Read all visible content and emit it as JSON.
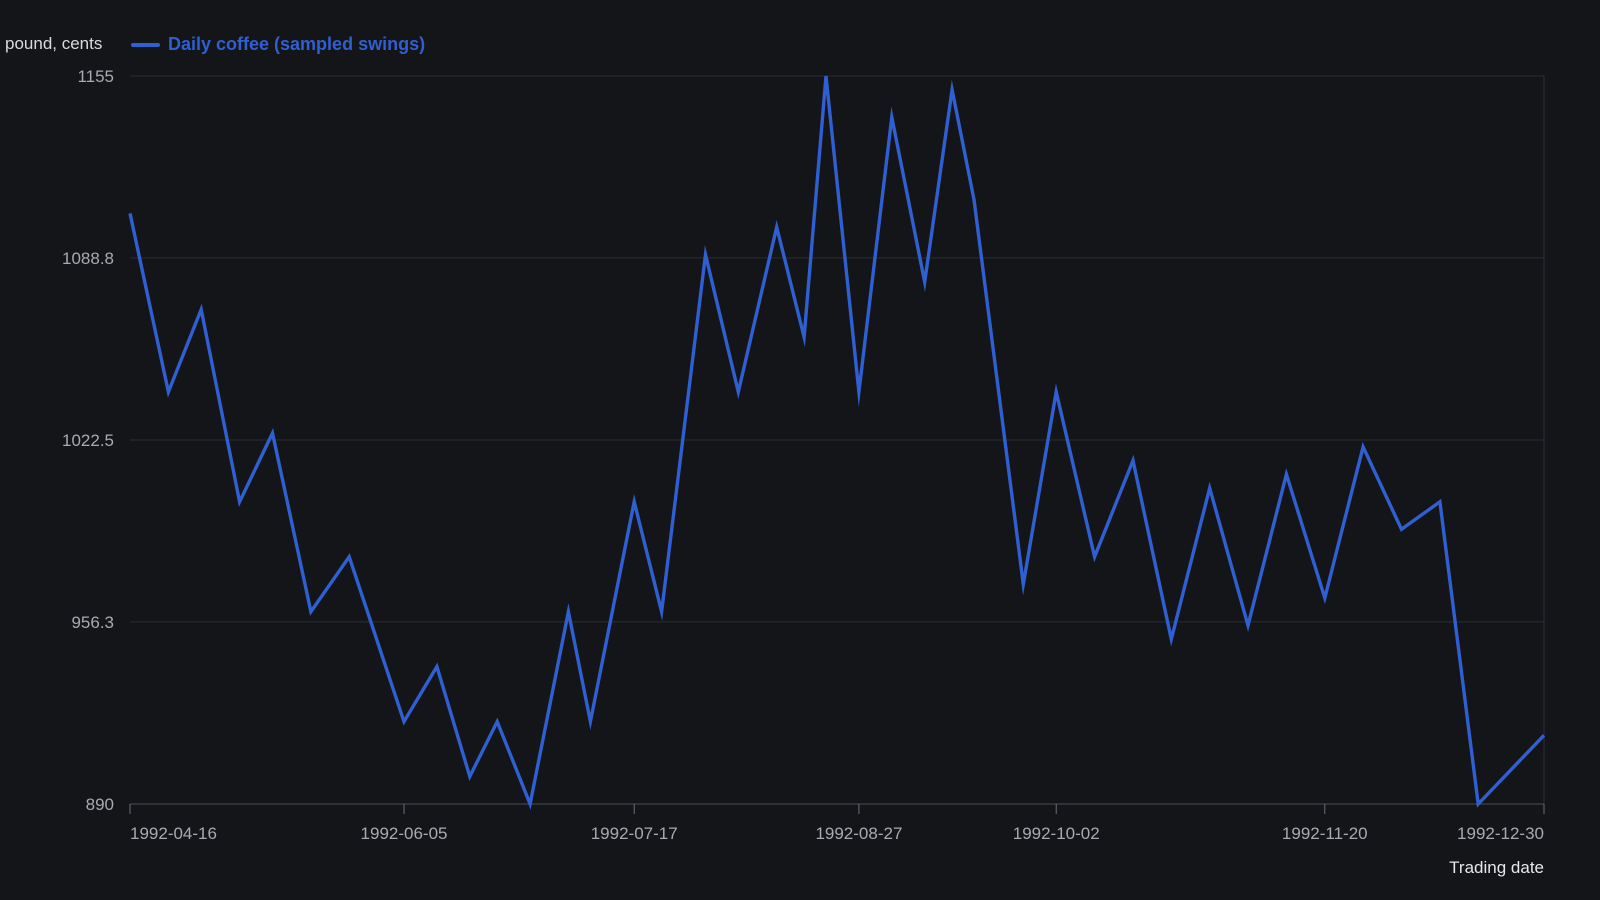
{
  "chart_data": {
    "type": "line",
    "title": "",
    "xlabel": "Trading date",
    "ylabel": "pound, cents",
    "ylim": [
      890,
      1155
    ],
    "y_ticks": [
      "890",
      "956.3",
      "1022.5",
      "1088.8",
      "1155"
    ],
    "x_tick_labels": [
      "1992-04-16",
      "1992-06-05",
      "1992-07-17",
      "1992-08-27",
      "1992-10-02",
      "1992-11-20",
      "1992-12-30"
    ],
    "grid": true,
    "legend_position": "top-left",
    "series": [
      {
        "name": "Daily coffee (sampled swings)",
        "color": "#2f5fd0",
        "points": [
          {
            "x": "1992-04-16",
            "y": 1105
          },
          {
            "x": "1992-04-23",
            "y": 1040
          },
          {
            "x": "1992-04-29",
            "y": 1070
          },
          {
            "x": "1992-05-06",
            "y": 1000
          },
          {
            "x": "1992-05-12",
            "y": 1025
          },
          {
            "x": "1992-05-19",
            "y": 960
          },
          {
            "x": "1992-05-26",
            "y": 980
          },
          {
            "x": "1992-06-05",
            "y": 920
          },
          {
            "x": "1992-06-11",
            "y": 940
          },
          {
            "x": "1992-06-17",
            "y": 900
          },
          {
            "x": "1992-06-22",
            "y": 920
          },
          {
            "x": "1992-06-28",
            "y": 890
          },
          {
            "x": "1992-07-05",
            "y": 960
          },
          {
            "x": "1992-07-09",
            "y": 920
          },
          {
            "x": "1992-07-17",
            "y": 1000
          },
          {
            "x": "1992-07-22",
            "y": 960
          },
          {
            "x": "1992-07-30",
            "y": 1090
          },
          {
            "x": "1992-08-05",
            "y": 1040
          },
          {
            "x": "1992-08-12",
            "y": 1100
          },
          {
            "x": "1992-08-17",
            "y": 1060
          },
          {
            "x": "1992-08-21",
            "y": 1155
          },
          {
            "x": "1992-08-27",
            "y": 1040
          },
          {
            "x": "1992-09-02",
            "y": 1140
          },
          {
            "x": "1992-09-08",
            "y": 1080
          },
          {
            "x": "1992-09-13",
            "y": 1150
          },
          {
            "x": "1992-09-17",
            "y": 1110
          },
          {
            "x": "1992-09-26",
            "y": 970
          },
          {
            "x": "1992-10-02",
            "y": 1040
          },
          {
            "x": "1992-10-09",
            "y": 980
          },
          {
            "x": "1992-10-16",
            "y": 1015
          },
          {
            "x": "1992-10-23",
            "y": 950
          },
          {
            "x": "1992-10-30",
            "y": 1005
          },
          {
            "x": "1992-11-06",
            "y": 955
          },
          {
            "x": "1992-11-13",
            "y": 1010
          },
          {
            "x": "1992-11-20",
            "y": 965
          },
          {
            "x": "1992-11-27",
            "y": 1020
          },
          {
            "x": "1992-12-04",
            "y": 990
          },
          {
            "x": "1992-12-11",
            "y": 1000
          },
          {
            "x": "1992-12-18",
            "y": 890
          },
          {
            "x": "1992-12-30",
            "y": 915
          }
        ]
      }
    ]
  }
}
